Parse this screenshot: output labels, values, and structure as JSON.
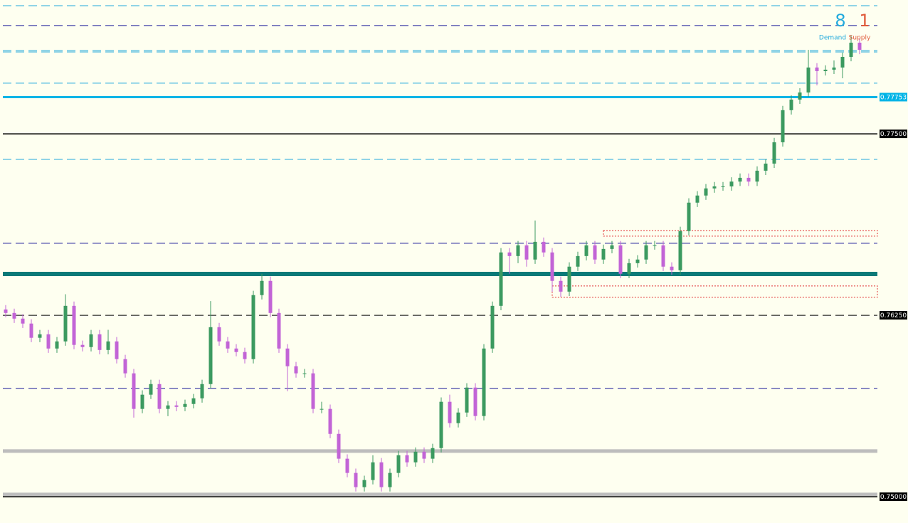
{
  "chart_data": {
    "type": "candlestick",
    "ylim": [
      0.74819,
      0.78422
    ],
    "yticks": [
      0.77753,
      {
        "value": 0.775,
        "label": "0.77500"
      },
      {
        "value": 0.7625,
        "label": "0.76250"
      },
      {
        "value": 0.75,
        "label": "0.75000"
      }
    ],
    "ytick_colors": [
      "#00b4e6",
      "#000000",
      "#000000",
      "#000000"
    ],
    "up_color": "#3c9a60",
    "down_color": "#c264d6",
    "candles": {
      "open": [
        0.7629,
        0.76266,
        0.76227,
        0.76193,
        0.76095,
        0.76119,
        0.76021,
        0.7607,
        0.76315,
        0.76046,
        0.76031,
        0.76119,
        0.76011,
        0.7607,
        0.75948,
        0.7585,
        0.75605,
        0.75703,
        0.75776,
        0.75605,
        0.75629,
        0.75619,
        0.75639,
        0.75678,
        0.75776,
        0.76168,
        0.7607,
        0.76021,
        0.75997,
        0.75948,
        0.76389,
        0.76487,
        0.76266,
        0.76021,
        0.75899,
        0.7585,
        0.7585,
        0.75605,
        0.75605,
        0.75433,
        0.75262,
        0.75164,
        0.75066,
        0.75115,
        0.75237,
        0.75066,
        0.75164,
        0.75286,
        0.75237,
        0.7531,
        0.75262,
        0.75335,
        0.75654,
        0.75507,
        0.7558,
        0.75752,
        0.75556,
        0.76021,
        0.76315,
        0.76683,
        0.76658,
        0.76732,
        0.76634,
        0.76756,
        0.76683,
        0.76487,
        0.76413,
        0.76585,
        0.76658,
        0.76732,
        0.76634,
        0.76707,
        0.76732,
        0.76536,
        0.76609,
        0.76634,
        0.76732,
        0.76732,
        0.76585,
        0.7656,
        0.7683,
        0.77026,
        0.77075,
        0.77124,
        0.77138,
        0.77138,
        0.77171,
        0.77197,
        0.77171,
        0.77246,
        0.77295,
        0.77442,
        0.77663,
        0.77736,
        0.77785,
        0.77957,
        0.77932,
        0.77942,
        0.77957,
        0.7803,
        0.78128
      ],
      "high": [
        0.7632,
        0.76296,
        0.76257,
        0.76223,
        0.76149,
        0.76149,
        0.761,
        0.76395,
        0.76345,
        0.76076,
        0.76149,
        0.76149,
        0.7615,
        0.761,
        0.75978,
        0.7588,
        0.75733,
        0.75806,
        0.75806,
        0.75659,
        0.75659,
        0.75669,
        0.75708,
        0.75806,
        0.76348,
        0.76198,
        0.761,
        0.76051,
        0.76027,
        0.76419,
        0.76536,
        0.76517,
        0.76296,
        0.76051,
        0.75929,
        0.7588,
        0.7588,
        0.75654,
        0.75635,
        0.75463,
        0.75292,
        0.75194,
        0.75145,
        0.75286,
        0.75267,
        0.75194,
        0.75316,
        0.75316,
        0.7534,
        0.7534,
        0.75365,
        0.75684,
        0.75703,
        0.7561,
        0.75782,
        0.75782,
        0.76051,
        0.76345,
        0.76713,
        0.76713,
        0.76762,
        0.76762,
        0.76903,
        0.76786,
        0.76713,
        0.76517,
        0.76615,
        0.76688,
        0.76762,
        0.76762,
        0.76737,
        0.76762,
        0.76762,
        0.76639,
        0.76664,
        0.76762,
        0.76762,
        0.76762,
        0.76615,
        0.7686,
        0.77056,
        0.77105,
        0.77154,
        0.77168,
        0.77168,
        0.77201,
        0.77227,
        0.77227,
        0.77276,
        0.77325,
        0.77472,
        0.77693,
        0.77766,
        0.77815,
        0.78079,
        0.77987,
        0.77972,
        0.78006,
        0.7806,
        0.78177,
        0.78158
      ],
      "low": [
        0.76236,
        0.76197,
        0.76163,
        0.76065,
        0.76065,
        0.75991,
        0.75991,
        0.7604,
        0.76016,
        0.76001,
        0.76001,
        0.75981,
        0.75981,
        0.75918,
        0.7582,
        0.75545,
        0.75575,
        0.75673,
        0.75575,
        0.75555,
        0.75589,
        0.75589,
        0.75609,
        0.75648,
        0.75746,
        0.7604,
        0.75991,
        0.75967,
        0.75918,
        0.75918,
        0.76359,
        0.76236,
        0.75991,
        0.75727,
        0.7582,
        0.7582,
        0.75575,
        0.75575,
        0.75403,
        0.75232,
        0.75134,
        0.75036,
        0.75036,
        0.75085,
        0.75036,
        0.75036,
        0.75134,
        0.75207,
        0.75207,
        0.75232,
        0.75232,
        0.75305,
        0.75477,
        0.75477,
        0.7555,
        0.75526,
        0.75526,
        0.75991,
        0.76285,
        0.76536,
        0.76609,
        0.76585,
        0.76604,
        0.76653,
        0.76413,
        0.76378,
        0.76383,
        0.76555,
        0.76628,
        0.76604,
        0.76604,
        0.76677,
        0.76506,
        0.76506,
        0.76579,
        0.76604,
        0.76702,
        0.76555,
        0.7653,
        0.7653,
        0.768,
        0.76996,
        0.77045,
        0.77094,
        0.77108,
        0.77108,
        0.77141,
        0.77141,
        0.77141,
        0.77216,
        0.77265,
        0.77412,
        0.77633,
        0.77706,
        0.77755,
        0.77834,
        0.77902,
        0.77912,
        0.77883,
        0.78,
        0.78049
      ],
      "close": [
        0.76266,
        0.76227,
        0.76193,
        0.76095,
        0.76119,
        0.76021,
        0.7607,
        0.76315,
        0.76046,
        0.76031,
        0.76119,
        0.76011,
        0.7607,
        0.75948,
        0.7585,
        0.75605,
        0.75703,
        0.75776,
        0.75605,
        0.75629,
        0.75619,
        0.75639,
        0.75678,
        0.75776,
        0.76168,
        0.7607,
        0.76021,
        0.75997,
        0.75948,
        0.76389,
        0.76487,
        0.76266,
        0.76021,
        0.75899,
        0.7585,
        0.7585,
        0.75605,
        0.75605,
        0.75433,
        0.75262,
        0.75164,
        0.75066,
        0.75115,
        0.75237,
        0.75066,
        0.75164,
        0.75286,
        0.75237,
        0.7531,
        0.75262,
        0.75335,
        0.75654,
        0.75507,
        0.7558,
        0.75752,
        0.75556,
        0.76021,
        0.76315,
        0.76683,
        0.76658,
        0.76732,
        0.76634,
        0.76756,
        0.76683,
        0.76487,
        0.76413,
        0.76585,
        0.76658,
        0.76732,
        0.76634,
        0.76707,
        0.76732,
        0.76536,
        0.76609,
        0.76634,
        0.76732,
        0.76732,
        0.76585,
        0.7656,
        0.7683,
        0.77026,
        0.77075,
        0.77124,
        0.77138,
        0.77138,
        0.77171,
        0.77197,
        0.77171,
        0.77246,
        0.77295,
        0.77442,
        0.77663,
        0.77736,
        0.77785,
        0.77957,
        0.77932,
        0.77942,
        0.77957,
        0.7803,
        0.78128,
        0.78079
      ]
    },
    "lines": [
      {
        "price": 0.78383,
        "color": "#22aadd",
        "width": 1,
        "dashed": true
      },
      {
        "price": 0.78246,
        "color": "#1a1a99",
        "width": 1,
        "dashed": true
      },
      {
        "price": 0.78074,
        "color": "#22aadd",
        "width": 1,
        "dashed": true
      },
      {
        "price": 0.78064,
        "color": "#22aadd",
        "width": 1,
        "dashed": true
      },
      {
        "price": 0.77849,
        "color": "#22aadd",
        "width": 1,
        "dashed": true
      },
      {
        "price": 0.77753,
        "color": "#00b4e6",
        "width": 3,
        "dashed": false
      },
      {
        "price": 0.775,
        "color": "#000000",
        "width": 1.5,
        "dashed": false
      },
      {
        "price": 0.77324,
        "color": "#22aadd",
        "width": 1,
        "dashed": true
      },
      {
        "price": 0.76746,
        "color": "#1a1a99",
        "width": 1,
        "dashed": true
      },
      {
        "price": 0.76535,
        "color": "#0a7a78",
        "width": 6,
        "dashed": false
      },
      {
        "price": 0.7625,
        "color": "#000000",
        "width": 1,
        "dashed": true
      },
      {
        "price": 0.75747,
        "color": "#1a1a99",
        "width": 1,
        "dashed": true
      },
      {
        "price": 0.75315,
        "color": "#bdbdbd",
        "width": 5,
        "dashed": false
      },
      {
        "price": 0.75016,
        "color": "#bdbdbd",
        "width": 5,
        "dashed": false
      },
      {
        "price": 0.75,
        "color": "#000000",
        "width": 1.5,
        "dashed": false
      }
    ],
    "zones": [
      {
        "start": 70,
        "top": 0.76834,
        "bottom": 0.76795
      },
      {
        "start": 64,
        "top": 0.76452,
        "bottom": 0.76374
      }
    ],
    "demand": {
      "count": "8",
      "label": "Demand",
      "color": "#22aadd"
    },
    "supply": {
      "count": "1",
      "label": "Supply",
      "color": "#e05a3a"
    }
  }
}
